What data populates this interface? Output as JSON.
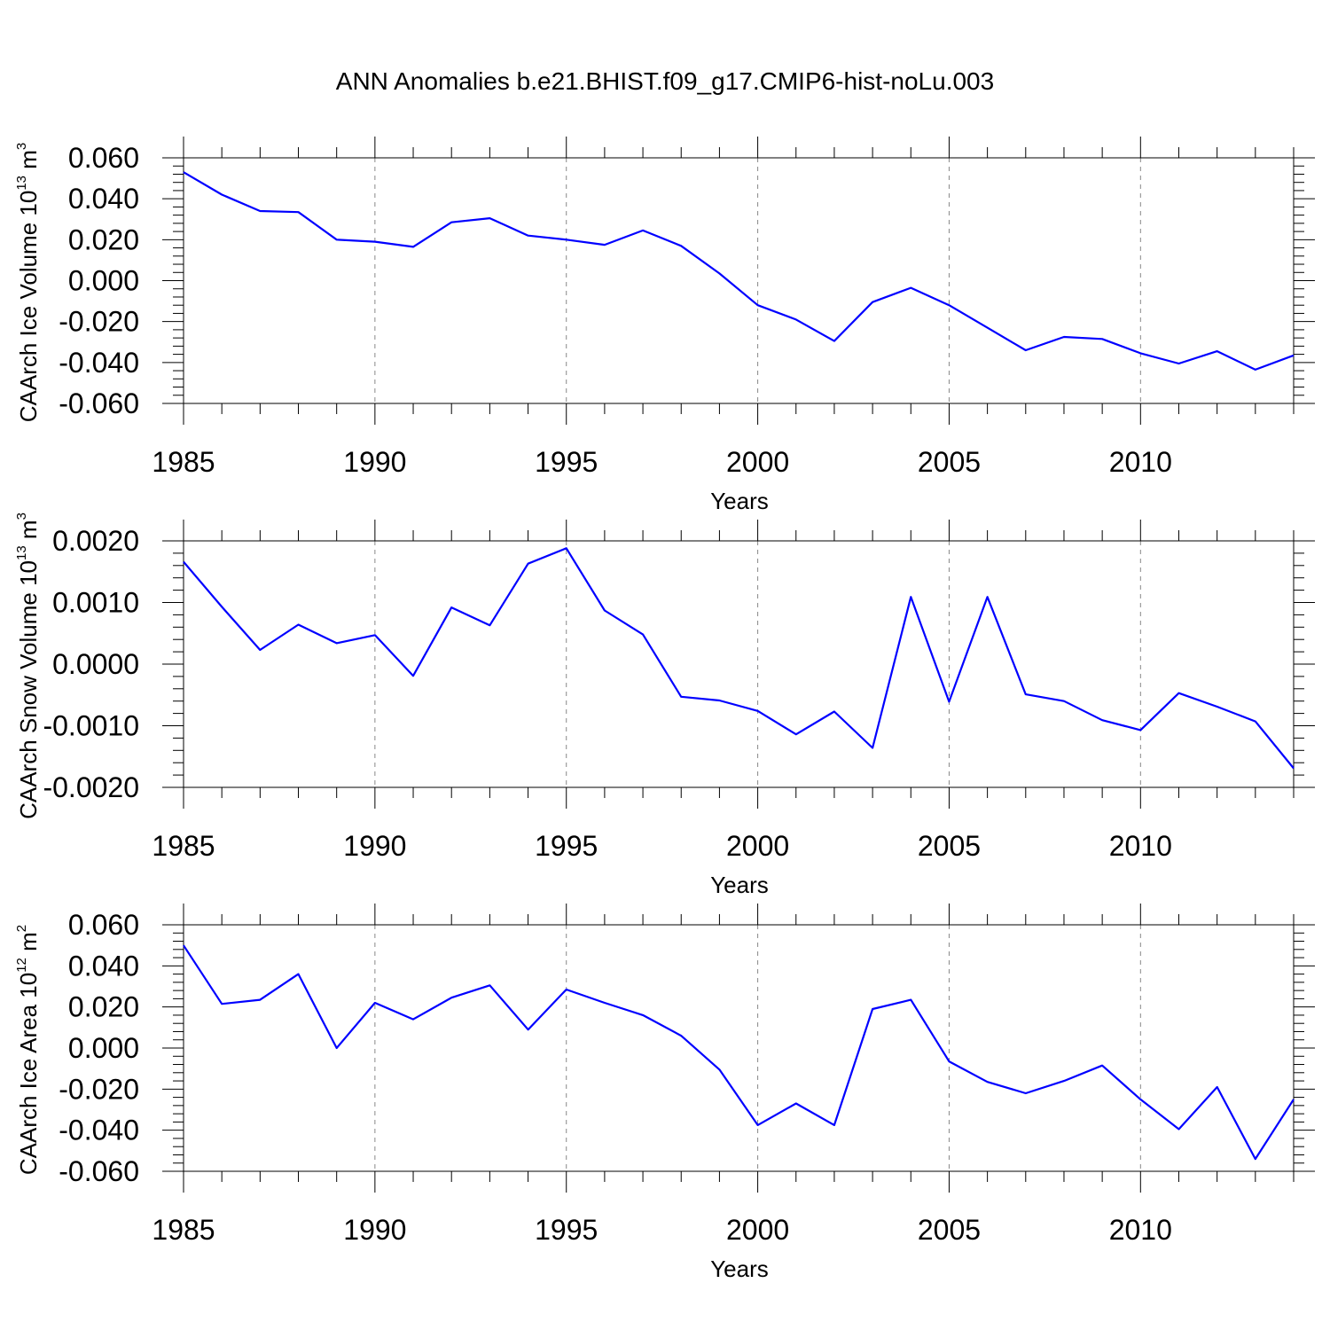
{
  "figure": {
    "title": "ANN Anomalies b.e21.BHIST.f09_g17.CMIP6-hist-noLu.003"
  },
  "chart_data": [
    {
      "type": "line",
      "name": "ice-volume",
      "title": "",
      "xlabel": "Years",
      "ylabel_text": "CAArch Ice Volume 10",
      "ylabel_exp": "13",
      "ylabel_unit": "m",
      "ylabel_unit_exp": "3",
      "xlim": [
        1985,
        2014
      ],
      "ylim": [
        -0.06,
        0.06
      ],
      "xticks": [
        1985,
        1990,
        1995,
        2000,
        2005,
        2010
      ],
      "xtick_labels": [
        "1985",
        "1990",
        "1995",
        "2000",
        "2005",
        "2010"
      ],
      "yticks": [
        0.06,
        0.04,
        0.02,
        0.0,
        -0.02,
        -0.04,
        -0.06
      ],
      "ytick_labels": [
        "0.060",
        "0.040",
        "0.020",
        "0.000",
        "-0.020",
        "-0.040",
        "-0.060"
      ],
      "color": "#0000ff",
      "x": [
        1985,
        1986,
        1987,
        1988,
        1989,
        1990,
        1991,
        1992,
        1993,
        1994,
        1995,
        1996,
        1997,
        1998,
        1999,
        2000,
        2001,
        2002,
        2003,
        2004,
        2005,
        2006,
        2007,
        2008,
        2009,
        2010,
        2011,
        2012,
        2013,
        2014
      ],
      "y": [
        0.053,
        0.042,
        0.034,
        0.0335,
        0.02,
        0.019,
        0.0165,
        0.0285,
        0.0305,
        0.022,
        0.02,
        0.0175,
        0.0245,
        0.017,
        0.0035,
        -0.012,
        -0.019,
        -0.0295,
        -0.0105,
        -0.0035,
        -0.012,
        -0.023,
        -0.034,
        -0.0275,
        -0.0285,
        -0.0355,
        -0.0405,
        -0.0345,
        -0.0435,
        -0.0365
      ]
    },
    {
      "type": "line",
      "name": "snow-volume",
      "title": "",
      "xlabel": "Years",
      "ylabel_text": "CAArch Snow Volume 10",
      "ylabel_exp": "13",
      "ylabel_unit": "m",
      "ylabel_unit_exp": "3",
      "xlim": [
        1985,
        2014
      ],
      "ylim": [
        -0.002,
        0.002
      ],
      "xticks": [
        1985,
        1990,
        1995,
        2000,
        2005,
        2010
      ],
      "xtick_labels": [
        "1985",
        "1990",
        "1995",
        "2000",
        "2005",
        "2010"
      ],
      "yticks": [
        0.002,
        0.001,
        0.0,
        -0.001,
        -0.002
      ],
      "ytick_labels": [
        "0.0020",
        "0.0010",
        "0.0000",
        "-0.0010",
        "-0.0020"
      ],
      "color": "#0000ff",
      "x": [
        1985,
        1986,
        1987,
        1988,
        1989,
        1990,
        1991,
        1992,
        1993,
        1994,
        1995,
        1996,
        1997,
        1998,
        1999,
        2000,
        2001,
        2002,
        2003,
        2004,
        2005,
        2006,
        2007,
        2008,
        2009,
        2010,
        2011,
        2012,
        2013,
        2014
      ],
      "y": [
        0.00166,
        0.00093,
        0.00023,
        0.00064,
        0.00034,
        0.00047,
        -0.00019,
        0.00092,
        0.00063,
        0.00163,
        0.00188,
        0.00087,
        0.00048,
        -0.00053,
        -0.00059,
        -0.00076,
        -0.00114,
        -0.00077,
        -0.00136,
        0.00109,
        -0.00061,
        0.00109,
        -0.00049,
        -0.0006,
        -0.00091,
        -0.00107,
        -0.00047,
        -0.00069,
        -0.00093,
        -0.00169
      ]
    },
    {
      "type": "line",
      "name": "ice-area",
      "title": "",
      "xlabel": "Years",
      "ylabel_text": "CAArch Ice Area 10",
      "ylabel_exp": "12",
      "ylabel_unit": "m",
      "ylabel_unit_exp": "2",
      "xlim": [
        1985,
        2014
      ],
      "ylim": [
        -0.06,
        0.06
      ],
      "xticks": [
        1985,
        1990,
        1995,
        2000,
        2005,
        2010
      ],
      "xtick_labels": [
        "1985",
        "1990",
        "1995",
        "2000",
        "2005",
        "2010"
      ],
      "yticks": [
        0.06,
        0.04,
        0.02,
        0.0,
        -0.02,
        -0.04,
        -0.06
      ],
      "ytick_labels": [
        "0.060",
        "0.040",
        "0.020",
        "0.000",
        "-0.020",
        "-0.040",
        "-0.060"
      ],
      "color": "#0000ff",
      "x": [
        1985,
        1986,
        1987,
        1988,
        1989,
        1990,
        1991,
        1992,
        1993,
        1994,
        1995,
        1996,
        1997,
        1998,
        1999,
        2000,
        2001,
        2002,
        2003,
        2004,
        2005,
        2006,
        2007,
        2008,
        2009,
        2010,
        2011,
        2012,
        2013,
        2014
      ],
      "y": [
        0.05,
        0.0215,
        0.0235,
        0.036,
        0.0,
        0.022,
        0.014,
        0.0245,
        0.0305,
        0.009,
        0.0285,
        0.022,
        0.016,
        0.006,
        -0.0105,
        -0.0375,
        -0.027,
        -0.0375,
        0.019,
        0.0235,
        -0.0065,
        -0.0165,
        -0.022,
        -0.016,
        -0.0085,
        -0.025,
        -0.0395,
        -0.019,
        -0.054,
        -0.025
      ]
    }
  ]
}
